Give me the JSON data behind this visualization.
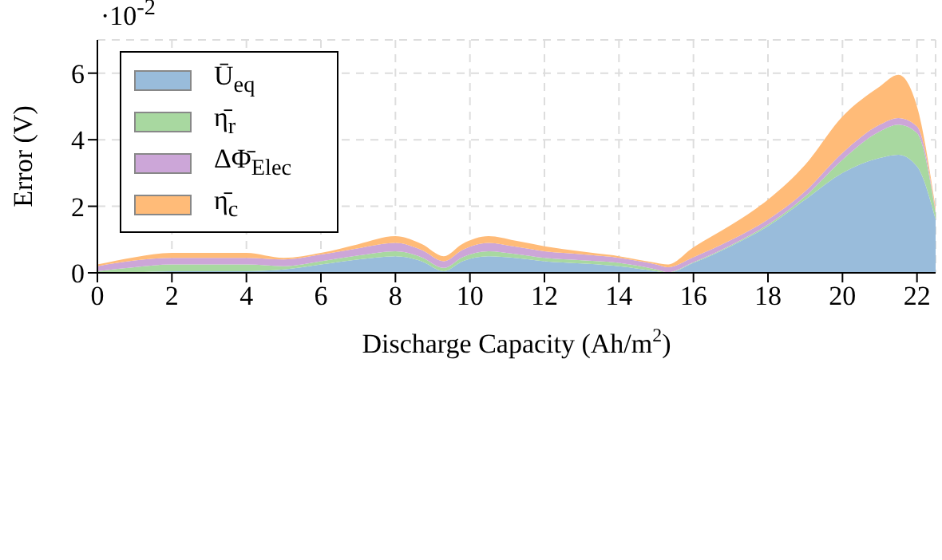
{
  "chart_data": {
    "type": "area",
    "stacked": true,
    "xlabel": "Discharge Capacity (Ah/m$^{2}$)",
    "ylabel": "Error (V)",
    "annotations": [
      "·10$^{-2}$"
    ],
    "x": [
      0,
      1,
      2,
      3,
      4,
      5,
      6,
      7,
      8,
      8.7,
      9.3,
      9.8,
      10.5,
      11.2,
      12,
      13,
      14,
      15,
      15.3,
      16,
      17,
      18,
      19,
      20,
      21,
      21.5,
      22,
      22.5
    ],
    "series": [
      {
        "name": "Ū$_{eq}$",
        "color": "#99bcdb",
        "values": [
          0,
          0.02,
          0.05,
          0.05,
          0.05,
          0.1,
          0.25,
          0.4,
          0.5,
          0.35,
          0.05,
          0.35,
          0.5,
          0.45,
          0.35,
          0.28,
          0.2,
          0.05,
          0,
          0.3,
          0.8,
          1.4,
          2.2,
          3.0,
          3.45,
          3.55,
          3.2,
          1.6
        ]
      },
      {
        "name": "η̄$_{r}$",
        "color": "#a8d8a0",
        "values": [
          0.05,
          0.15,
          0.2,
          0.2,
          0.2,
          0.1,
          0.1,
          0.12,
          0.15,
          0.12,
          0.1,
          0.12,
          0.15,
          0.12,
          0.1,
          0.1,
          0.1,
          0.05,
          0.02,
          0.02,
          0.03,
          0.05,
          0.1,
          0.4,
          0.8,
          0.9,
          1.0,
          0.2
        ]
      },
      {
        "name": "ΔΦ̄$_{Elec}$",
        "color": "#cca6d8",
        "values": [
          0.15,
          0.2,
          0.2,
          0.2,
          0.2,
          0.2,
          0.2,
          0.22,
          0.25,
          0.22,
          0.2,
          0.22,
          0.25,
          0.22,
          0.2,
          0.18,
          0.15,
          0.15,
          0.15,
          0.15,
          0.15,
          0.15,
          0.15,
          0.2,
          0.2,
          0.2,
          0.2,
          0.05
        ]
      },
      {
        "name": "η̄$_{c}$",
        "color": "#ffbb78",
        "values": [
          0.05,
          0.1,
          0.15,
          0.15,
          0.15,
          0.05,
          0.05,
          0.12,
          0.2,
          0.18,
          0.15,
          0.18,
          0.2,
          0.18,
          0.15,
          0.08,
          0.05,
          0.05,
          0.08,
          0.3,
          0.45,
          0.6,
          0.8,
          1.1,
          1.15,
          1.3,
          0.6,
          0.1
        ]
      }
    ],
    "xlim": [
      0,
      22.5
    ],
    "xticks": [
      0,
      2,
      4,
      6,
      8,
      10,
      12,
      14,
      16,
      18,
      20,
      22
    ],
    "ylim": [
      0,
      7
    ],
    "yticks": [
      0,
      2,
      4,
      6
    ],
    "grid": true,
    "legend": "top left"
  }
}
